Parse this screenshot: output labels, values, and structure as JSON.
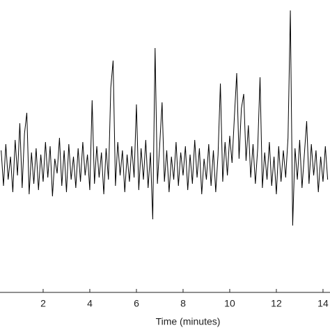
{
  "chart_data": {
    "type": "line",
    "xlabel": "Time (minutes)",
    "color": "#000000",
    "xlim": [
      0.15,
      14.3
    ],
    "ylim": [
      -6,
      8
    ],
    "xticks": [
      2,
      4,
      6,
      8,
      10,
      12,
      14
    ],
    "x": [
      0.2,
      0.3,
      0.4,
      0.5,
      0.6,
      0.7,
      0.8,
      0.9,
      1.0,
      1.1,
      1.2,
      1.3,
      1.4,
      1.5,
      1.6,
      1.7,
      1.8,
      1.9,
      2.0,
      2.1,
      2.2,
      2.3,
      2.4,
      2.5,
      2.6,
      2.7,
      2.8,
      2.9,
      3.0,
      3.1,
      3.2,
      3.3,
      3.4,
      3.5,
      3.6,
      3.7,
      3.8,
      3.9,
      4.0,
      4.1,
      4.2,
      4.3,
      4.4,
      4.5,
      4.6,
      4.7,
      4.8,
      4.9,
      5.0,
      5.1,
      5.2,
      5.3,
      5.4,
      5.5,
      5.6,
      5.7,
      5.8,
      5.9,
      6.0,
      6.1,
      6.2,
      6.3,
      6.4,
      6.5,
      6.6,
      6.7,
      6.8,
      6.9,
      7.0,
      7.1,
      7.2,
      7.3,
      7.4,
      7.5,
      7.6,
      7.7,
      7.8,
      7.9,
      8.0,
      8.1,
      8.2,
      8.3,
      8.4,
      8.5,
      8.6,
      8.7,
      8.8,
      8.9,
      9.0,
      9.1,
      9.2,
      9.3,
      9.4,
      9.5,
      9.6,
      9.7,
      9.8,
      9.9,
      10.0,
      10.1,
      10.2,
      10.3,
      10.4,
      10.5,
      10.6,
      10.7,
      10.8,
      10.9,
      11.0,
      11.1,
      11.2,
      11.3,
      11.4,
      11.5,
      11.6,
      11.7,
      11.8,
      11.9,
      12.0,
      12.1,
      12.2,
      12.3,
      12.4,
      12.5,
      12.6,
      12.7,
      12.8,
      12.9,
      13.0,
      13.1,
      13.2,
      13.3,
      13.4,
      13.5,
      13.6,
      13.7,
      13.8,
      13.9,
      14.0,
      14.1,
      14.2
    ],
    "values": [
      0.8,
      -0.9,
      1.1,
      -0.6,
      0.5,
      -1.2,
      1.3,
      -0.4,
      2.1,
      -1.0,
      1.6,
      2.6,
      -1.3,
      0.7,
      -0.8,
      0.9,
      -1.1,
      0.6,
      -0.7,
      1.2,
      -0.5,
      1.0,
      -1.4,
      0.4,
      -0.3,
      1.4,
      -0.9,
      0.8,
      -1.2,
      1.1,
      -0.6,
      0.5,
      -1.0,
      0.9,
      -0.7,
      1.2,
      -0.4,
      0.6,
      -1.1,
      3.2,
      -0.8,
      1.0,
      -0.5,
      0.7,
      -1.3,
      0.9,
      -0.6,
      3.8,
      5.1,
      -0.9,
      1.2,
      -0.4,
      0.8,
      -1.2,
      0.6,
      -0.7,
      1.0,
      -0.5,
      3.0,
      -1.1,
      0.9,
      -0.6,
      1.3,
      -1.0,
      0.7,
      -2.5,
      5.7,
      -0.8,
      1.1,
      3.1,
      -0.7,
      0.8,
      -1.2,
      0.5,
      -0.6,
      1.2,
      -0.9,
      0.7,
      -0.4,
      1.0,
      -1.1,
      0.6,
      -0.8,
      1.3,
      -0.5,
      0.9,
      -1.3,
      0.4,
      -0.6,
      1.1,
      -0.9,
      0.8,
      -1.2,
      0.6,
      4.0,
      -0.7,
      1.2,
      -0.4,
      1.5,
      0.2,
      2.4,
      4.5,
      0.4,
      2.8,
      3.5,
      0.3,
      2.0,
      -0.5,
      1.1,
      -0.8,
      0.9,
      4.3,
      -1.0,
      0.7,
      -0.6,
      1.2,
      -0.9,
      0.5,
      -1.3,
      1.0,
      -0.7,
      0.8,
      -0.5,
      1.4,
      7.5,
      -2.8,
      0.9,
      -0.6,
      1.3,
      -1.0,
      0.6,
      2.2,
      -0.8,
      1.1,
      -0.4,
      0.8,
      -1.2,
      0.5,
      -0.7,
      1.0,
      -0.6
    ]
  }
}
